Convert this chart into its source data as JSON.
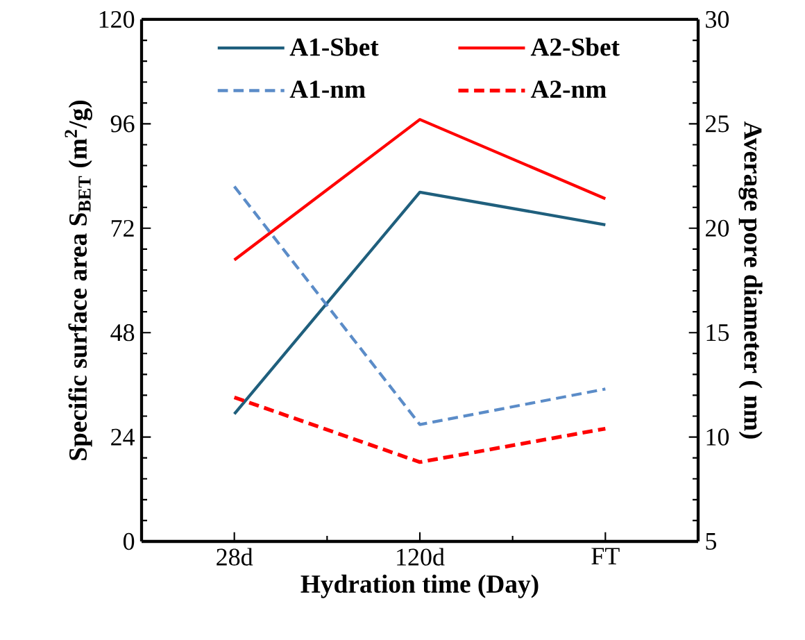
{
  "chart_data": {
    "type": "line",
    "xlabel": "Hydration time  (Day)",
    "ylabel": "Specific surface area S$_{BET}$ (m$^{2}$/g)",
    "y2label": "Average pore diameter ( nm)",
    "categories": [
      "28d",
      "120d",
      "FT"
    ],
    "series": [
      {
        "name": "A1-Sbet",
        "color": "#1f5f7d",
        "values": [
          29.3,
          80.3,
          72.8
        ],
        "line_style": "solid"
      },
      {
        "name": "A2-Sbet",
        "color": "#ff0000",
        "values": [
          64.7,
          97.0,
          78.8
        ],
        "line_style": "solid"
      },
      {
        "name": "A1-nm",
        "color": "#5b8cc8",
        "values": [
          22.0,
          10.6,
          12.3
        ],
        "line_style": "dashed",
        "axis": "y2"
      },
      {
        "name": "A2-nm",
        "color": "#ff0000",
        "values": [
          11.9,
          8.8,
          10.4
        ],
        "line_style": "dashed",
        "axis": "y2"
      }
    ],
    "ylim": [
      0,
      120
    ],
    "yticks": [
      0,
      24,
      48,
      72,
      96,
      120
    ],
    "y2lim": [
      5,
      30
    ],
    "y2ticks": [
      5,
      10,
      15,
      20,
      25,
      30
    ],
    "legend": "top",
    "grid": false,
    "marker": "none"
  }
}
